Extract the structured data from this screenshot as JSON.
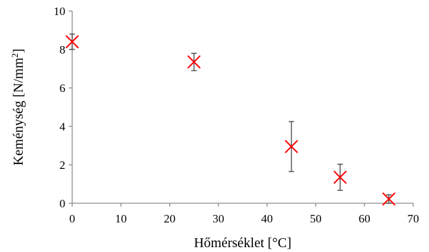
{
  "chart_data": {
    "type": "scatter",
    "title": "",
    "xlabel": "Hőmérséklet [°C]",
    "ylabel_main": "Keménység [N/mm",
    "ylabel_sup": "2",
    "ylabel_close": "]",
    "xlim": [
      0,
      70
    ],
    "ylim": [
      0,
      10
    ],
    "x_ticks": [
      "0",
      "10",
      "20",
      "30",
      "40",
      "50",
      "60",
      "70"
    ],
    "y_ticks": [
      "0",
      "2",
      "4",
      "6",
      "8",
      "10"
    ],
    "x_tick_values": [
      0,
      10,
      20,
      30,
      40,
      50,
      60,
      70
    ],
    "y_tick_values": [
      0,
      2,
      4,
      6,
      8,
      10
    ],
    "grid": false,
    "marker": "x",
    "marker_color": "#ff0000",
    "errorbar_color": "#404040",
    "points": [
      {
        "x": 0,
        "y": 8.4,
        "err": 0.4
      },
      {
        "x": 25,
        "y": 7.35,
        "err": 0.45
      },
      {
        "x": 45,
        "y": 2.95,
        "err": 1.3
      },
      {
        "x": 55,
        "y": 1.35,
        "err": 0.68
      },
      {
        "x": 65,
        "y": 0.22,
        "err": 0.22
      }
    ]
  }
}
